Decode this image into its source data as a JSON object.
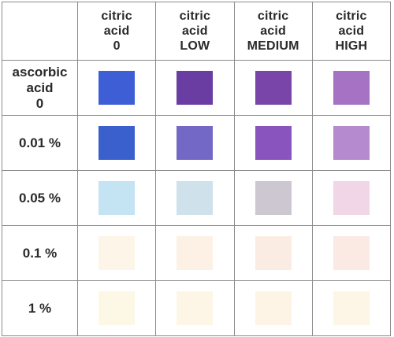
{
  "columns": [
    [
      "citric",
      "acid",
      "0"
    ],
    [
      "citric",
      "acid",
      "LOW"
    ],
    [
      "citric",
      "acid",
      "MEDIUM"
    ],
    [
      "citric",
      "acid",
      "HIGH"
    ]
  ],
  "rows": [
    {
      "label": [
        "ascorbic",
        "acid",
        "0"
      ],
      "swatches": [
        "#3e5ed6",
        "#6a3da2",
        "#7a45a8",
        "#a672c4"
      ]
    },
    {
      "label": [
        "0.01 %"
      ],
      "swatches": [
        "#3a60cd",
        "#7468c6",
        "#8a54be",
        "#b68ace"
      ]
    },
    {
      "label": [
        "0.05 %"
      ],
      "swatches": [
        "#c4e3f3",
        "#cfe2ec",
        "#cdc7d2",
        "#f0d6e6"
      ]
    },
    {
      "label": [
        "0.1 %"
      ],
      "swatches": [
        "#fdf6e8",
        "#fcf1e4",
        "#faece3",
        "#fbe9e3"
      ]
    },
    {
      "label": [
        "1 %"
      ],
      "swatches": [
        "#fdf7e6",
        "#fdf6e6",
        "#fdf4e5",
        "#fdf5e6"
      ]
    }
  ]
}
